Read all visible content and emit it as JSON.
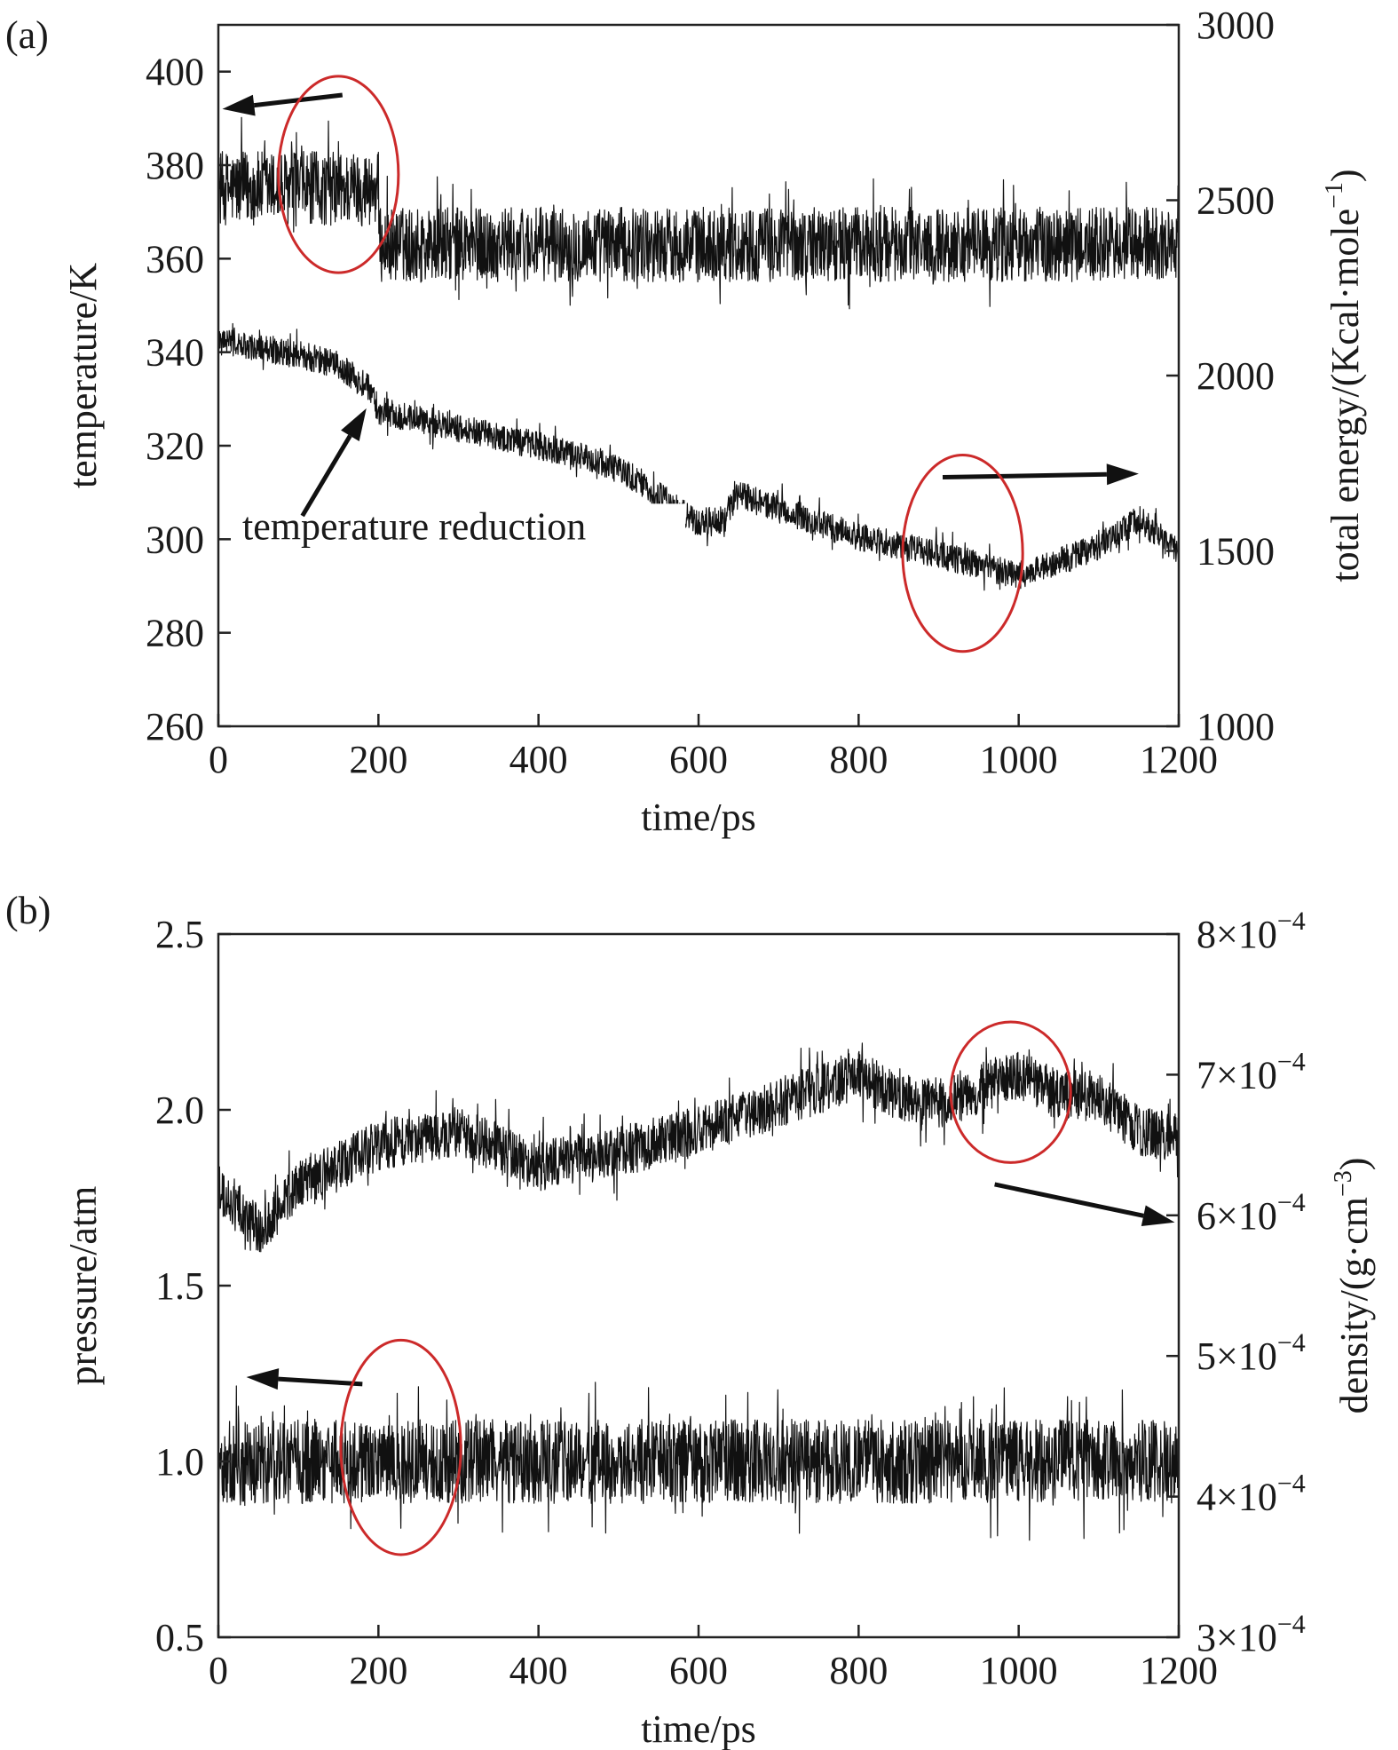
{
  "figure": {
    "colors": {
      "trace": "#111111",
      "axes": "#222222",
      "highlight": "#cc2a2a",
      "arrow": "#111111"
    }
  },
  "chart_data": [
    {
      "panel": "(a)",
      "type": "line",
      "x": {
        "label": "time/ps",
        "lim": [
          0,
          1200
        ],
        "ticks": [
          0,
          200,
          400,
          600,
          800,
          1000,
          1200
        ],
        "tick_labels": [
          "0",
          "200",
          "400",
          "600",
          "800",
          "1000",
          "1200"
        ]
      },
      "y_left": {
        "label": "temperature/K",
        "lim": [
          260,
          410
        ],
        "ticks": [
          260,
          280,
          300,
          320,
          340,
          360,
          380,
          400
        ],
        "tick_labels": [
          "260",
          "280",
          "300",
          "320",
          "340",
          "360",
          "380",
          "400"
        ]
      },
      "y_right": {
        "label_main": "total energy/(Kcal·mole",
        "label_sup": "−1",
        "label_end": ")",
        "lim": [
          1000,
          3000
        ],
        "ticks": [
          1000,
          1500,
          2000,
          2500,
          3000
        ],
        "tick_labels": [
          "1000",
          "1500",
          "2000",
          "2500",
          "3000"
        ]
      },
      "grid": false,
      "series": [
        {
          "axis": "left",
          "x": [
            0,
            200,
            201,
            1200
          ],
          "y": [
            375,
            375,
            363,
            363
          ],
          "noise_amplitude": 8,
          "band": "dense noisy band"
        },
        {
          "axis": "right",
          "x": [
            0,
            100,
            150,
            190,
            200,
            300,
            400,
            500,
            600,
            630,
            650,
            700,
            800,
            900,
            1000,
            1050,
            1100,
            1130,
            1150,
            1200
          ],
          "y": [
            2100,
            2060,
            2030,
            1960,
            1900,
            1850,
            1800,
            1740,
            1580,
            1590,
            1660,
            1620,
            1540,
            1490,
            1430,
            1470,
            1510,
            1560,
            1590,
            1500
          ],
          "noise_amplitude": 40,
          "band": "noisy band"
        }
      ],
      "annotations": [
        {
          "kind": "text",
          "text": "temperature reduction",
          "x": 30,
          "y": 300,
          "axis": "left"
        },
        {
          "kind": "arrow",
          "from": [
            155,
            395
          ],
          "to": [
            5,
            392
          ],
          "axis": "left"
        },
        {
          "kind": "arrow",
          "from": [
            105,
            305
          ],
          "to": [
            185,
            328
          ],
          "axis": "left"
        },
        {
          "kind": "arrow",
          "from": [
            905,
            1710
          ],
          "to": [
            1150,
            1720
          ],
          "axis": "right"
        },
        {
          "kind": "ellipse",
          "cx": 150,
          "cy": 378,
          "rx": 75,
          "ry": 21,
          "axis": "left"
        },
        {
          "kind": "ellipse",
          "cx": 930,
          "cy": 297,
          "rx": 75,
          "ry": 21,
          "axis": "left"
        }
      ]
    },
    {
      "panel": "(b)",
      "type": "line",
      "x": {
        "label": "time/ps",
        "lim": [
          0,
          1200
        ],
        "ticks": [
          0,
          200,
          400,
          600,
          800,
          1000,
          1200
        ],
        "tick_labels": [
          "0",
          "200",
          "400",
          "600",
          "800",
          "1000",
          "1200"
        ]
      },
      "y_left": {
        "label": "pressure/atm",
        "lim": [
          0.5,
          2.5
        ],
        "ticks": [
          0.5,
          1.0,
          1.5,
          2.0,
          2.5
        ],
        "tick_labels": [
          "0.5",
          "1.0",
          "1.5",
          "2.0",
          "2.5"
        ]
      },
      "y_right": {
        "label_main": "density/(g·cm",
        "label_sup": "−3",
        "label_end": ")",
        "lim": [
          0.0003,
          0.0008
        ],
        "ticks": [
          0.0003,
          0.0004,
          0.0005,
          0.0006,
          0.0007,
          0.0008
        ],
        "tick_mantissa": [
          "3×10",
          "4×10",
          "5×10",
          "6×10",
          "7×10",
          "8×10"
        ],
        "tick_exponent": [
          "−4",
          "−4",
          "−4",
          "−4",
          "−4",
          "−4"
        ]
      },
      "grid": false,
      "series": [
        {
          "axis": "left",
          "x": [
            0,
            1200
          ],
          "y": [
            1.0,
            1.0
          ],
          "noise_amplitude": 0.12,
          "band": "dense noisy band"
        },
        {
          "axis": "right",
          "x": [
            0,
            50,
            100,
            200,
            300,
            400,
            500,
            600,
            700,
            800,
            850,
            900,
            950,
            1000,
            1050,
            1100,
            1150,
            1200
          ],
          "y": [
            0.00062,
            0.00059,
            0.00062,
            0.00065,
            0.00066,
            0.000635,
            0.000645,
            0.00066,
            0.00068,
            0.0007,
            0.000685,
            0.00068,
            0.00069,
            0.0007,
            0.000685,
            0.000685,
            0.00066,
            0.000655
          ],
          "noise_amplitude": 1.8e-05,
          "band": "noisy band"
        }
      ],
      "annotations": [
        {
          "kind": "arrow",
          "from": [
            180,
            1.22
          ],
          "to": [
            35,
            1.24
          ],
          "axis": "left"
        },
        {
          "kind": "arrow",
          "from": [
            970,
            0.000622
          ],
          "to": [
            1195,
            0.000595
          ],
          "axis": "right"
        },
        {
          "kind": "ellipse",
          "cx": 228,
          "cy": 1.04,
          "rx": 75,
          "ry": 0.305,
          "axis": "left"
        },
        {
          "kind": "ellipse",
          "cx": 990,
          "cy": 2.05,
          "rx": 75,
          "ry": 0.2,
          "axis": "left"
        }
      ]
    }
  ]
}
